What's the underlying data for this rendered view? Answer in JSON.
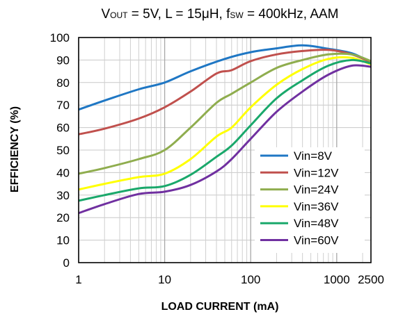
{
  "chart_data": {
    "type": "line",
    "title": {
      "parts": [
        {
          "text": "V",
          "sub": false
        },
        {
          "text": "OUT",
          "sub": true
        },
        {
          "text": " = 5V, L = 15μH, f",
          "sub": false
        },
        {
          "text": "SW",
          "sub": true
        },
        {
          "text": " = 400kHz, AAM",
          "sub": false
        }
      ]
    },
    "xlabel": "LOAD CURRENT  (mA)",
    "ylabel": "EFFICIENCY  (%)",
    "x_scale": "log",
    "xlim": [
      1,
      2500
    ],
    "ylim": [
      0,
      100
    ],
    "x_ticks": [
      {
        "value": 1,
        "label": "1"
      },
      {
        "value": 10,
        "label": "10"
      },
      {
        "value": 100,
        "label": "100"
      },
      {
        "value": 1000,
        "label": "1000"
      },
      {
        "value": 2500,
        "label": "2500"
      }
    ],
    "y_ticks": [
      0,
      10,
      20,
      30,
      40,
      50,
      60,
      70,
      80,
      90,
      100
    ],
    "grid": true,
    "legend_position": "bottom-right",
    "series": [
      {
        "name": "Vin=8V",
        "color": "#1f77c4",
        "x": [
          1,
          2,
          5,
          10,
          20,
          50,
          100,
          200,
          400,
          800,
          1500,
          2500
        ],
        "y": [
          68,
          72,
          77,
          80,
          85,
          90.5,
          93.5,
          95.2,
          96.5,
          95,
          93,
          89
        ]
      },
      {
        "name": "Vin=12V",
        "color": "#c0504d",
        "x": [
          1,
          2,
          5,
          10,
          20,
          40,
          60,
          100,
          200,
          400,
          800,
          1500,
          2500
        ],
        "y": [
          57,
          59.5,
          64,
          69,
          76,
          84,
          85.5,
          89.5,
          92.5,
          94,
          94.5,
          92.5,
          89
        ]
      },
      {
        "name": "Vin=24V",
        "color": "#8fad4e",
        "x": [
          1,
          2,
          5,
          10,
          20,
          40,
          60,
          100,
          200,
          400,
          800,
          1500,
          2500
        ],
        "y": [
          39.5,
          42,
          46,
          50,
          60,
          71,
          75,
          80,
          86.5,
          90,
          92.5,
          92.5,
          89.5
        ]
      },
      {
        "name": "Vin=36V",
        "color": "#ffff00",
        "x": [
          1,
          2,
          5,
          10,
          20,
          40,
          60,
          100,
          200,
          400,
          800,
          1500,
          2500
        ],
        "y": [
          32.5,
          35,
          38,
          39.5,
          46,
          56,
          60,
          69,
          79,
          86,
          90.5,
          91,
          88
        ]
      },
      {
        "name": "Vin=48V",
        "color": "#1aa86b",
        "x": [
          1,
          2,
          5,
          10,
          20,
          40,
          60,
          100,
          200,
          400,
          800,
          1500,
          2500
        ],
        "y": [
          27.5,
          30,
          33,
          34,
          39,
          47,
          52,
          61,
          73,
          81,
          87.5,
          90,
          88.5
        ]
      },
      {
        "name": "Vin=60V",
        "color": "#7030a0",
        "x": [
          1,
          2,
          5,
          10,
          20,
          40,
          60,
          100,
          200,
          400,
          800,
          1500,
          2500
        ],
        "y": [
          22,
          26,
          30.5,
          31.5,
          34.5,
          40.5,
          46,
          55,
          67,
          76,
          83.5,
          87.5,
          87
        ]
      }
    ]
  }
}
